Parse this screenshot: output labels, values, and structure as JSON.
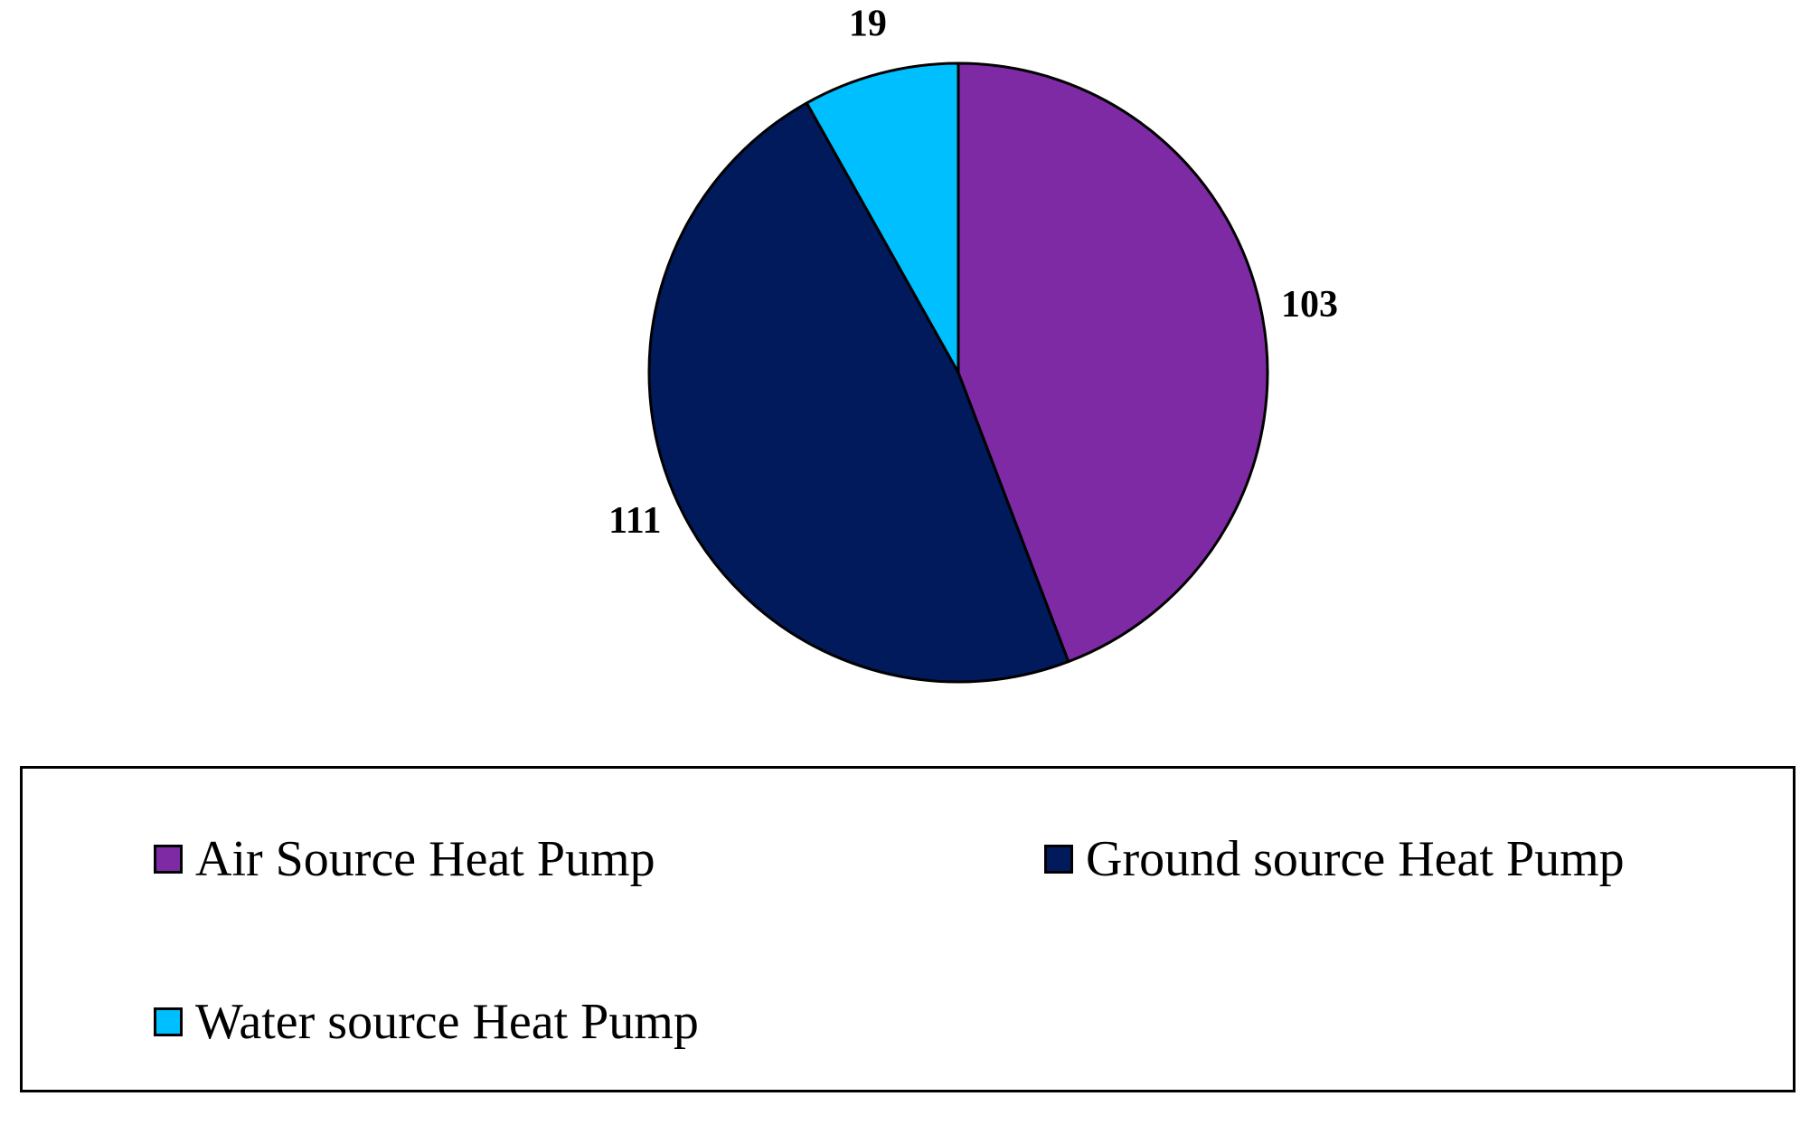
{
  "chart_data": {
    "type": "pie",
    "title": "",
    "start_angle_deg": 0,
    "direction": "clockwise",
    "legend_placement": "bottom",
    "slices": [
      {
        "name": "Air Source Heat Pump",
        "value": 103,
        "label": "103",
        "color": "#7f2aa5"
      },
      {
        "name": "Ground source Heat Pump",
        "value": 111,
        "label": "111",
        "color": "#001a5c"
      },
      {
        "name": "Water source Heat Pump",
        "value": 19,
        "label": "19",
        "color": "#00bfff"
      }
    ]
  },
  "legend": {
    "items": [
      {
        "label": "Air Source Heat Pump",
        "color": "#7f2aa5"
      },
      {
        "label": "Ground source Heat Pump",
        "color": "#001a5c"
      },
      {
        "label": "Water source Heat Pump",
        "color": "#00bfff"
      }
    ]
  }
}
